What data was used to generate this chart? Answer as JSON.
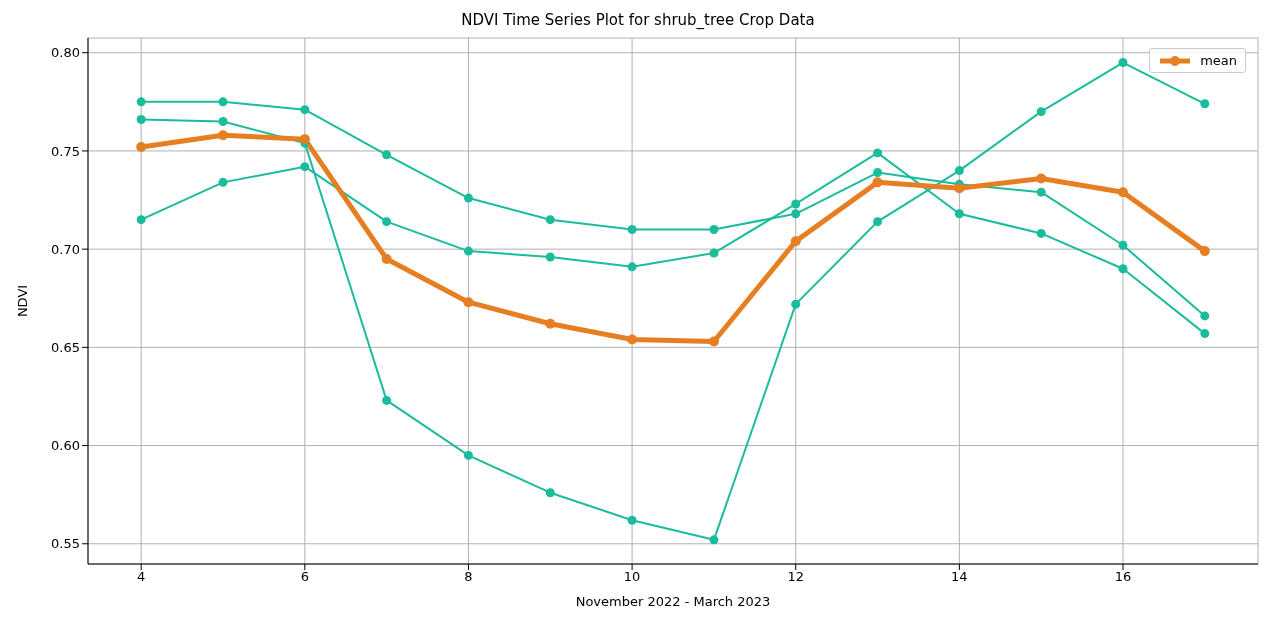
{
  "chart_data": {
    "type": "line",
    "title": "NDVI Time Series Plot for shrub_tree Crop Data",
    "xlabel": "November 2022 - March 2023",
    "ylabel": "NDVI",
    "x": [
      4,
      5,
      6,
      7,
      8,
      9,
      10,
      11,
      12,
      13,
      14,
      15,
      16,
      17
    ],
    "series": [
      {
        "color": "#1abc9c",
        "values": [
          0.775,
          0.775,
          0.771,
          0.748,
          0.726,
          0.715,
          0.71,
          0.71,
          0.718,
          0.739,
          0.733,
          0.729,
          0.702,
          0.666
        ]
      },
      {
        "color": "#1abc9c",
        "values": [
          0.766,
          0.765,
          0.754,
          0.623,
          0.595,
          0.576,
          0.562,
          0.552,
          0.672,
          0.714,
          0.74,
          0.77,
          0.795,
          0.774
        ]
      },
      {
        "color": "#1abc9c",
        "values": [
          0.715,
          0.734,
          0.742,
          0.714,
          0.699,
          0.696,
          0.691,
          0.698,
          0.723,
          0.749,
          0.718,
          0.708,
          0.69,
          0.657
        ]
      },
      {
        "name": "mean",
        "color": "#e67e22",
        "values": [
          0.752,
          0.758,
          0.756,
          0.695,
          0.673,
          0.662,
          0.654,
          0.653,
          0.704,
          0.734,
          0.731,
          0.736,
          0.729,
          0.699
        ]
      }
    ],
    "xlim": [
      3.35,
      17.65
    ],
    "xticks": [
      4,
      6,
      8,
      10,
      12,
      14,
      16
    ],
    "ylim": [
      0.5397,
      0.8075
    ],
    "yticks": [
      0.55,
      {
        "value": 0.6,
        "label": "0.60"
      },
      0.65,
      {
        "value": 0.7,
        "label": "0.70"
      },
      0.75,
      {
        "value": 0.8,
        "label": "0.80"
      }
    ],
    "grid": true,
    "legend": "top right",
    "marker": "circle",
    "line_style": "solid"
  }
}
